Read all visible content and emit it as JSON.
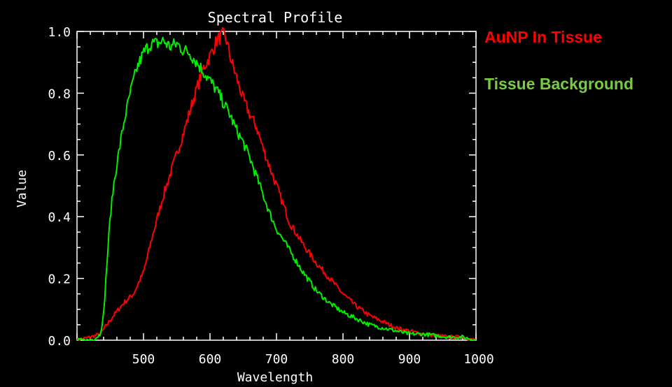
{
  "chart_data": {
    "type": "line",
    "title": "Spectral Profile",
    "xlabel": "Wavelength",
    "ylabel": "Value",
    "xlim": [
      400,
      1000
    ],
    "ylim": [
      0,
      1.0
    ],
    "xticks": [
      "500",
      "600",
      "700",
      "800",
      "900",
      "1000"
    ],
    "yticks": [
      "0.0",
      "0.2",
      "0.4",
      "0.6",
      "0.8",
      "1.0"
    ],
    "grid": false,
    "legend_placement": "right",
    "series": [
      {
        "name": "AuNP In Tissue",
        "color": "#ff0000",
        "x": [
          400,
          420,
          435,
          445,
          455,
          470,
          485,
          500,
          515,
          530,
          545,
          560,
          575,
          590,
          600,
          610,
          615,
          620,
          625,
          630,
          640,
          650,
          660,
          670,
          680,
          690,
          700,
          710,
          720,
          740,
          760,
          780,
          800,
          820,
          840,
          860,
          880,
          900,
          920,
          940,
          960,
          980,
          1000
        ],
        "y": [
          0.0,
          0.01,
          0.02,
          0.05,
          0.08,
          0.12,
          0.15,
          0.22,
          0.35,
          0.47,
          0.57,
          0.67,
          0.78,
          0.88,
          0.92,
          0.97,
          0.98,
          0.99,
          0.97,
          0.92,
          0.85,
          0.78,
          0.73,
          0.69,
          0.62,
          0.56,
          0.5,
          0.44,
          0.38,
          0.31,
          0.25,
          0.2,
          0.15,
          0.11,
          0.08,
          0.06,
          0.04,
          0.03,
          0.02,
          0.015,
          0.01,
          0.01,
          0.0
        ]
      },
      {
        "name": "Tissue Background",
        "color": "#00ee00",
        "x": [
          400,
          420,
          430,
          435,
          440,
          445,
          450,
          455,
          460,
          470,
          480,
          490,
          500,
          510,
          520,
          530,
          540,
          550,
          560,
          570,
          580,
          590,
          600,
          610,
          620,
          630,
          640,
          650,
          660,
          670,
          680,
          690,
          700,
          720,
          740,
          760,
          780,
          800,
          820,
          840,
          860,
          880,
          900,
          920,
          940,
          960,
          980,
          1000
        ],
        "y": [
          0.0,
          0.0,
          0.01,
          0.02,
          0.08,
          0.25,
          0.4,
          0.5,
          0.57,
          0.7,
          0.8,
          0.88,
          0.93,
          0.96,
          0.96,
          0.97,
          0.95,
          0.96,
          0.94,
          0.93,
          0.9,
          0.87,
          0.84,
          0.81,
          0.77,
          0.73,
          0.68,
          0.64,
          0.59,
          0.53,
          0.47,
          0.41,
          0.36,
          0.29,
          0.22,
          0.16,
          0.12,
          0.09,
          0.07,
          0.05,
          0.04,
          0.03,
          0.02,
          0.02,
          0.015,
          0.01,
          0.01,
          0.0
        ]
      }
    ]
  }
}
